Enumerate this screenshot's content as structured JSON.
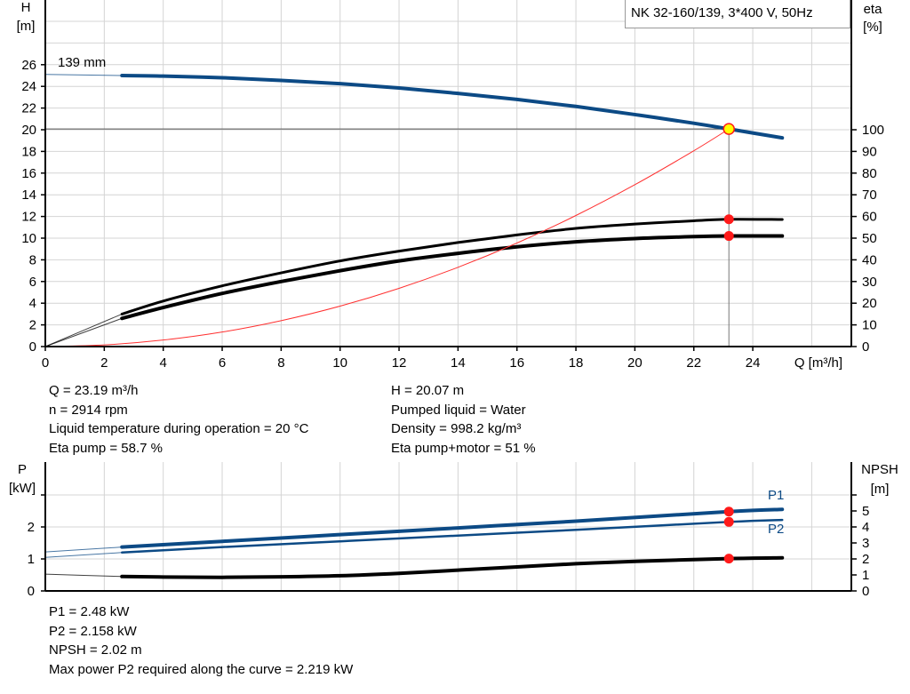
{
  "chart_data": [
    {
      "type": "line",
      "title": "NK 32-160/139, 3*400 V, 50Hz",
      "xlabel": "Q [m³/h]",
      "ylabel_left": [
        "H",
        "[m]"
      ],
      "ylabel_right": [
        "eta",
        "[%]"
      ],
      "xlim": [
        0,
        27.4
      ],
      "ylim_left": [
        0,
        30
      ],
      "ylim_right": [
        0,
        100
      ],
      "x_ticks": [
        "0",
        "2",
        "4",
        "6",
        "8",
        "10",
        "12",
        "14",
        "16",
        "18",
        "20",
        "22",
        "24"
      ],
      "y_left_ticks": [
        "0",
        "2",
        "4",
        "6",
        "8",
        "10",
        "12",
        "14",
        "16",
        "18",
        "20",
        "22",
        "24",
        "26"
      ],
      "y_right_ticks": [
        "0",
        "10",
        "20",
        "30",
        "40",
        "50",
        "60",
        "70",
        "80",
        "90",
        "100"
      ],
      "grid": true,
      "curve_start_q": 2.6,
      "annotation": "139 mm",
      "duty_point": {
        "q": 23.19,
        "h": 20.07,
        "eta_pump": 58.7,
        "eta_pump_motor": 51
      },
      "series": [
        {
          "key": "head",
          "axis": "left",
          "color": "#0c4a85",
          "x": [
            0,
            2.6,
            4,
            6,
            8,
            10,
            12,
            14,
            16,
            18,
            20,
            22,
            23.19,
            25
          ],
          "y": [
            25.1,
            25.0,
            24.95,
            24.8,
            24.55,
            24.25,
            23.85,
            23.35,
            22.8,
            22.15,
            21.4,
            20.6,
            20.07,
            19.25
          ]
        },
        {
          "key": "eta-pump",
          "axis": "right",
          "color": "#000000",
          "x": [
            0,
            2.6,
            4,
            6,
            8,
            10,
            12,
            14,
            16,
            18,
            20,
            22,
            23.19,
            25
          ],
          "y": [
            0,
            15,
            21,
            28,
            34,
            39.5,
            44,
            48,
            51.5,
            54.5,
            56.5,
            58,
            58.7,
            58.6
          ]
        },
        {
          "key": "eta-pump-motor",
          "axis": "right",
          "color": "#000000",
          "x": [
            0,
            2.6,
            4,
            6,
            8,
            10,
            12,
            14,
            16,
            18,
            20,
            22,
            23.19,
            25
          ],
          "y": [
            0,
            13,
            18,
            24.5,
            30,
            35,
            39.5,
            43,
            46,
            48.3,
            49.8,
            50.7,
            51,
            51
          ]
        },
        {
          "key": "system-curve",
          "axis": "left",
          "color": "#ff3030",
          "x": [
            0,
            2,
            4,
            6,
            8,
            10,
            12,
            14,
            16,
            18,
            20,
            22,
            23.19
          ],
          "y": [
            0,
            0.15,
            0.6,
            1.34,
            2.39,
            3.73,
            5.37,
            7.31,
            9.55,
            12.09,
            14.93,
            18.06,
            20.07
          ]
        }
      ]
    },
    {
      "type": "line",
      "ylabel_left": [
        "P",
        "[kW]"
      ],
      "ylabel_right": [
        "NPSH",
        "[m]"
      ],
      "xlim": [
        0,
        27.4
      ],
      "ylim_left": [
        0,
        3
      ],
      "ylim_right": [
        0,
        6
      ],
      "y_left_ticks": [
        "0",
        "1",
        "2"
      ],
      "y_right_ticks": [
        "0",
        "1",
        "2",
        "3",
        "4",
        "5"
      ],
      "grid": true,
      "curve_start_q": 2.6,
      "duty_q": 23.19,
      "series": [
        {
          "key": "p1",
          "name": "P1",
          "axis": "left",
          "color": "#0c4a85",
          "duty_value": 2.48,
          "x": [
            0,
            2.6,
            6,
            10,
            14,
            18,
            23.19,
            25
          ],
          "y": [
            1.22,
            1.37,
            1.55,
            1.76,
            1.97,
            2.18,
            2.48,
            2.55
          ]
        },
        {
          "key": "p2",
          "name": "P2",
          "axis": "left",
          "color": "#0c4a85",
          "duty_value": 2.158,
          "x": [
            0,
            2.6,
            6,
            10,
            14,
            18,
            23.19,
            25
          ],
          "y": [
            1.05,
            1.2,
            1.37,
            1.55,
            1.73,
            1.91,
            2.158,
            2.22
          ]
        },
        {
          "key": "npsh",
          "axis": "right",
          "color": "#000000",
          "duty_value": 2.02,
          "x": [
            0,
            2.6,
            4,
            6,
            8,
            10,
            12,
            14,
            16,
            18,
            20,
            23.19,
            25
          ],
          "y": [
            1.05,
            0.9,
            0.87,
            0.85,
            0.88,
            0.95,
            1.1,
            1.3,
            1.5,
            1.7,
            1.85,
            2.02,
            2.07
          ]
        }
      ]
    }
  ],
  "info_top": {
    "left": [
      "Q = 23.19 m³/h",
      "n = 2914 rpm",
      "Liquid temperature during operation = 20 °C",
      "Eta pump = 58.7 %"
    ],
    "right": [
      "H = 20.07 m",
      "Pumped liquid = Water",
      "Density = 998.2 kg/m³",
      "Eta pump+motor = 51 %"
    ]
  },
  "info_bottom": [
    "P1 = 2.48 kW",
    "P2 = 2.158 kW",
    "NPSH = 2.02 m",
    "Max power P2 required along the curve = 2.219 kW"
  ]
}
